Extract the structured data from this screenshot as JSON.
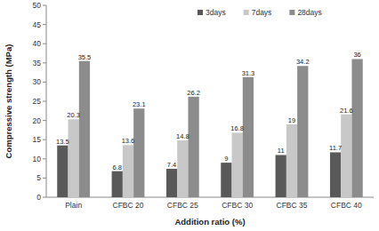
{
  "chart_data": {
    "type": "bar",
    "x_label": "Addition ratio (%)",
    "y_label": "Compressive strength (MPa)",
    "categories": [
      "Plain",
      "CFBC 20",
      "CFBC 25",
      "CFBC 30",
      "CFBC 35",
      "CFBC 40"
    ],
    "series": [
      {
        "name": "3days",
        "color": "#595959",
        "values": [
          13.5,
          6.8,
          7.4,
          9,
          11,
          11.7
        ]
      },
      {
        "name": "7days",
        "color": "#c8c8c8",
        "values": [
          20.3,
          13.6,
          14.8,
          16.8,
          19,
          21.6
        ]
      },
      {
        "name": "28days",
        "color": "#8c8c8c",
        "values": [
          35.5,
          23.1,
          26.2,
          31.3,
          34.2,
          36
        ]
      }
    ],
    "ylim": [
      0,
      50
    ],
    "yticks": [
      0,
      5,
      10,
      15,
      20,
      25,
      30,
      35,
      40,
      45,
      50
    ],
    "grid": false,
    "legend": "top",
    "data_labels": true
  }
}
